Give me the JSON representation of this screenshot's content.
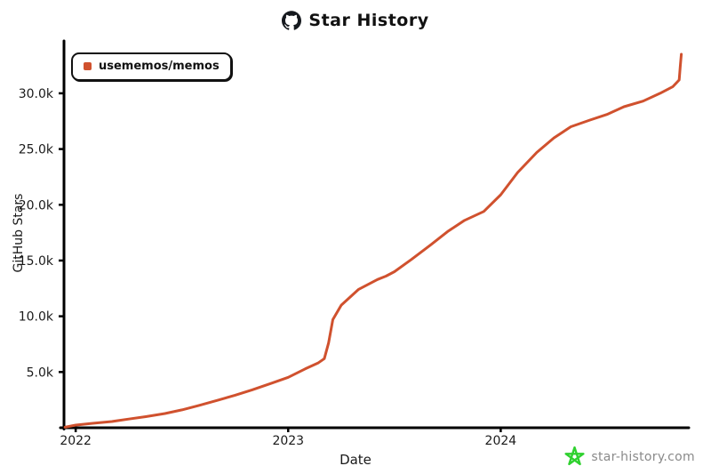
{
  "header": {
    "title": "Star History",
    "icon": "github-octocat-icon"
  },
  "chart_data": {
    "type": "line",
    "title": "Star History",
    "xlabel": "Date",
    "ylabel": "GitHub Stars",
    "grid": false,
    "legend_position": "top-left",
    "axis_color": "#000000",
    "xlim": [
      2021.945,
      2024.885
    ],
    "ylim": [
      0,
      34700
    ],
    "x_ticks": [
      {
        "label": "2022",
        "value": 2022
      },
      {
        "label": "2023",
        "value": 2023
      },
      {
        "label": "2024",
        "value": 2024
      }
    ],
    "y_ticks": [
      {
        "label": "5.0k",
        "value": 5000
      },
      {
        "label": "10.0k",
        "value": 10000
      },
      {
        "label": "15.0k",
        "value": 15000
      },
      {
        "label": "20.0k",
        "value": 20000
      },
      {
        "label": "25.0k",
        "value": 25000
      },
      {
        "label": "30.0k",
        "value": 30000
      }
    ],
    "series": [
      {
        "name": "usememos/memos",
        "color": "#D0512E",
        "points_format": [
          "year_decimal",
          "stars"
        ],
        "points": [
          [
            2021.95,
            50
          ],
          [
            2022.0,
            240
          ],
          [
            2022.08,
            400
          ],
          [
            2022.17,
            560
          ],
          [
            2022.25,
            780
          ],
          [
            2022.33,
            1000
          ],
          [
            2022.42,
            1280
          ],
          [
            2022.5,
            1600
          ],
          [
            2022.58,
            2000
          ],
          [
            2022.67,
            2480
          ],
          [
            2022.75,
            2920
          ],
          [
            2022.83,
            3400
          ],
          [
            2022.92,
            3980
          ],
          [
            2023.0,
            4520
          ],
          [
            2023.08,
            5280
          ],
          [
            2023.14,
            5800
          ],
          [
            2023.17,
            6200
          ],
          [
            2023.19,
            7600
          ],
          [
            2023.21,
            9700
          ],
          [
            2023.25,
            11000
          ],
          [
            2023.33,
            12400
          ],
          [
            2023.42,
            13300
          ],
          [
            2023.46,
            13600
          ],
          [
            2023.5,
            14000
          ],
          [
            2023.58,
            15100
          ],
          [
            2023.67,
            16400
          ],
          [
            2023.75,
            17600
          ],
          [
            2023.83,
            18600
          ],
          [
            2023.92,
            19400
          ],
          [
            2024.0,
            20900
          ],
          [
            2024.08,
            22900
          ],
          [
            2024.17,
            24700
          ],
          [
            2024.25,
            26000
          ],
          [
            2024.33,
            27000
          ],
          [
            2024.42,
            27600
          ],
          [
            2024.5,
            28100
          ],
          [
            2024.58,
            28800
          ],
          [
            2024.67,
            29300
          ],
          [
            2024.75,
            30000
          ],
          [
            2024.81,
            30600
          ],
          [
            2024.84,
            31200
          ],
          [
            2024.845,
            32400
          ],
          [
            2024.85,
            33500
          ]
        ]
      }
    ]
  },
  "footer": {
    "brand": "star-history.com",
    "brand_text_color": "#8a8a8a",
    "star_color": "#2FD12F"
  }
}
